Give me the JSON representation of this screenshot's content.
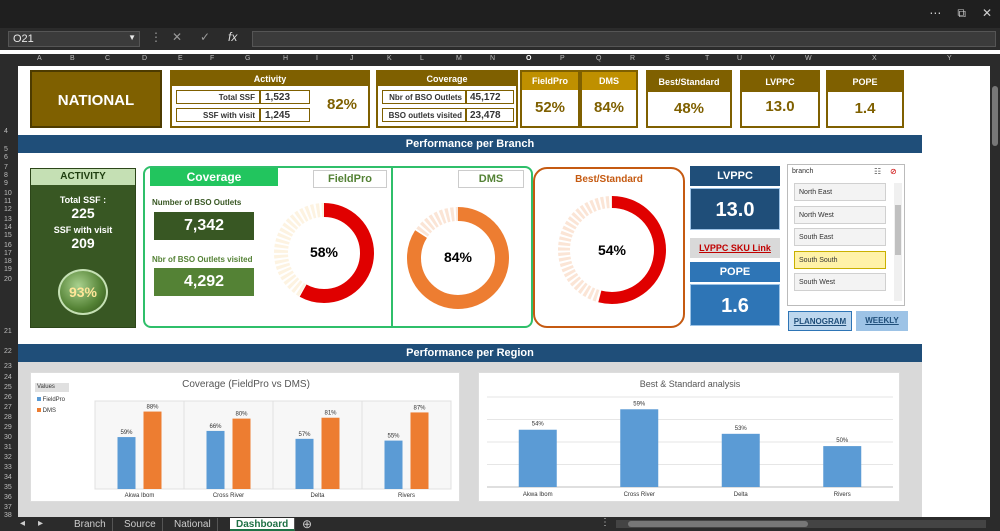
{
  "window": {
    "icons": [
      "more-icon",
      "restore-icon",
      "close-icon"
    ]
  },
  "formula_bar": {
    "name_box": "O21",
    "fx": "fx",
    "cancel": "✕",
    "enter": "✓",
    "value": ""
  },
  "columns": [
    "A",
    "B",
    "C",
    "D",
    "E",
    "F",
    "G",
    "H",
    "I",
    "J",
    "K",
    "L",
    "M",
    "N",
    "O",
    "P",
    "Q",
    "R",
    "S",
    "T",
    "U",
    "V",
    "W",
    "X",
    "Y"
  ],
  "rows": [
    "4",
    "5",
    "6",
    "7",
    "8",
    "9",
    "10",
    "11",
    "12",
    "13",
    "14",
    "15",
    "16",
    "17",
    "18",
    "19",
    "20",
    "21",
    "22",
    "23",
    "24",
    "25",
    "26",
    "27",
    "28",
    "29",
    "30",
    "31",
    "32",
    "33",
    "34",
    "35",
    "36",
    "37",
    "38",
    "39"
  ],
  "header": {
    "national": "NATIONAL",
    "activity": {
      "title": "Activity",
      "total_label": "Total SSF",
      "total_value": "1,523",
      "visit_label": "SSF with visit",
      "visit_value": "1,245",
      "percent": "82%"
    },
    "coverage": {
      "title": "Coverage",
      "outlets_label": "Nbr of BSO Outlets",
      "outlets_value": "45,172",
      "visited_label": "BSO outlets visited",
      "visited_value": "23,478"
    },
    "fieldpro": {
      "title": "FieldPro",
      "value": "52%"
    },
    "dms": {
      "title": "DMS",
      "value": "84%"
    },
    "best": {
      "title": "Best/Standard",
      "value": "48%"
    },
    "lvppc": {
      "title": "LVPPC",
      "value": "13.0"
    },
    "pope": {
      "title": "POPE",
      "value": "1.4"
    }
  },
  "branch_section": {
    "banner": "Performance per Branch",
    "activity": {
      "title": "ACTIVITY",
      "total_label": "Total SSF :",
      "total_value": "225",
      "visit_label": "SSF with visit",
      "visit_value": "209",
      "percent": "93%"
    },
    "coverage": {
      "title": "Coverage",
      "outlets_label": "Number of BSO Outlets",
      "outlets_value": "7,342",
      "visited_label": "Nbr of BSO Outlets visited",
      "visited_value": "4,292"
    },
    "fieldpro": {
      "title": "FieldPro",
      "percent": "58%",
      "fraction": 0.58,
      "color": "#e00000"
    },
    "dms": {
      "title": "DMS",
      "percent": "84%",
      "fraction": 0.84,
      "color": "#ed7d31"
    },
    "best": {
      "title": "Best/Standard",
      "percent": "54%",
      "fraction": 0.54,
      "color": "#e00000"
    },
    "lvppc": {
      "title": "LVPPC",
      "value": "13.0"
    },
    "lvppc_link": "LVPPC SKU Link",
    "pope": {
      "title": "POPE",
      "value": "1.6"
    },
    "planogram": "PLANOGRAM",
    "weekly": "WEEKLY",
    "slicer": {
      "title": "branch",
      "items": [
        "North East",
        "North West",
        "South East",
        "South South",
        "South West"
      ],
      "selected": "South South"
    }
  },
  "region_section": {
    "banner": "Performance per Region"
  },
  "chart_data": [
    {
      "type": "bar",
      "title": "Coverage (FieldPro vs DMS)",
      "legend_title": "Values",
      "categories": [
        "Akwa Ibom",
        "Cross River",
        "Delta",
        "Rivers"
      ],
      "series": [
        {
          "name": "FieldPro",
          "values": [
            59,
            66,
            57,
            55
          ],
          "labels": [
            "59%",
            "66%",
            "57%",
            "55%"
          ],
          "color": "#5b9bd5"
        },
        {
          "name": "DMS",
          "values": [
            88,
            80,
            81,
            87
          ],
          "labels": [
            "88%",
            "80%",
            "81%",
            "87%"
          ],
          "color": "#ed7d31"
        }
      ],
      "ylim": [
        0,
        100
      ]
    },
    {
      "type": "bar",
      "title": "Best & Standard analysis",
      "categories": [
        "Akwa Ibom",
        "Cross River",
        "Delta",
        "Rivers"
      ],
      "series": [
        {
          "name": "Best/Standard",
          "values": [
            54,
            59,
            53,
            50
          ],
          "labels": [
            "54%",
            "59%",
            "53%",
            "50%"
          ],
          "color": "#5b9bd5"
        }
      ],
      "ylim": [
        40,
        62
      ]
    }
  ],
  "tabs": [
    "Branch",
    "Source",
    "National",
    "Dashboard"
  ],
  "active_tab": "Dashboard"
}
